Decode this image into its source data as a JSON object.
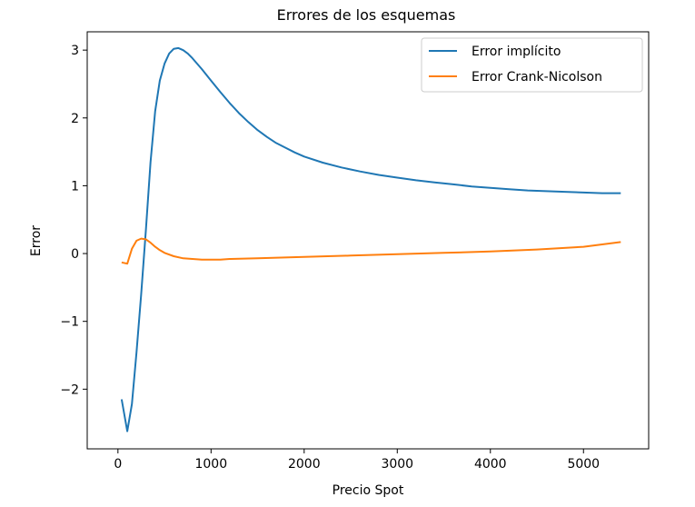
{
  "chart_data": {
    "type": "line",
    "title": "Errores de los esquemas",
    "xlabel": "Precio Spot",
    "ylabel": "Error",
    "xlim": [
      -330,
      5700
    ],
    "ylim": [
      -2.88,
      3.27
    ],
    "xticks": [
      0,
      1000,
      2000,
      3000,
      4000,
      5000
    ],
    "xtick_labels": [
      "0",
      "1000",
      "2000",
      "3000",
      "4000",
      "5000"
    ],
    "yticks": [
      -2,
      -1,
      0,
      1,
      2,
      3
    ],
    "ytick_labels": [
      "−2",
      "−1",
      "0",
      "1",
      "2",
      "3"
    ],
    "grid": false,
    "legend_position": "top-right",
    "series": [
      {
        "name": "Error implícito",
        "color": "#1f77b4",
        "x": [
          40,
          100,
          150,
          200,
          250,
          300,
          350,
          400,
          450,
          500,
          550,
          600,
          650,
          700,
          750,
          800,
          900,
          1000,
          1100,
          1200,
          1300,
          1400,
          1500,
          1600,
          1700,
          1800,
          1900,
          2000,
          2200,
          2400,
          2600,
          2800,
          3000,
          3200,
          3400,
          3600,
          3800,
          4000,
          4200,
          4400,
          4600,
          4800,
          5000,
          5200,
          5400
        ],
        "values": [
          -2.15,
          -2.62,
          -2.22,
          -1.45,
          -0.6,
          0.35,
          1.35,
          2.1,
          2.55,
          2.8,
          2.95,
          3.02,
          3.03,
          3.0,
          2.95,
          2.88,
          2.72,
          2.55,
          2.38,
          2.22,
          2.07,
          1.94,
          1.82,
          1.72,
          1.63,
          1.56,
          1.49,
          1.43,
          1.34,
          1.27,
          1.21,
          1.16,
          1.12,
          1.08,
          1.05,
          1.02,
          0.99,
          0.97,
          0.95,
          0.93,
          0.92,
          0.91,
          0.9,
          0.89,
          0.89
        ]
      },
      {
        "name": "Error Crank-Nicolson",
        "color": "#ff7f0e",
        "x": [
          40,
          100,
          150,
          200,
          250,
          300,
          350,
          400,
          450,
          500,
          600,
          700,
          800,
          900,
          1000,
          1100,
          1200,
          1500,
          2000,
          2500,
          3000,
          3500,
          4000,
          4500,
          5000,
          5400
        ],
        "values": [
          -0.13,
          -0.15,
          0.07,
          0.19,
          0.22,
          0.21,
          0.16,
          0.1,
          0.05,
          0.01,
          -0.04,
          -0.07,
          -0.08,
          -0.09,
          -0.09,
          -0.09,
          -0.08,
          -0.07,
          -0.05,
          -0.03,
          -0.01,
          0.01,
          0.03,
          0.06,
          0.1,
          0.17
        ]
      }
    ]
  }
}
